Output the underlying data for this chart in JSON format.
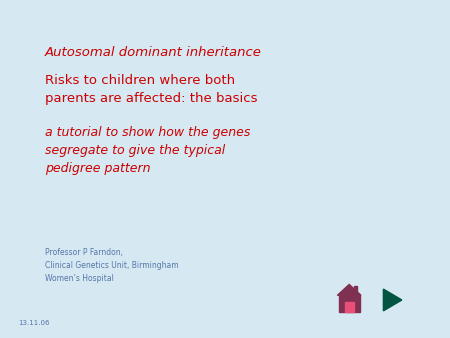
{
  "background_color": "#d6e8f2",
  "title_line": "Autosomal dominant inheritance",
  "title_color": "#cc0000",
  "title_fontsize": 9.5,
  "subtitle_line1": "Risks to children where both",
  "subtitle_line2": "parents are affected: the basics",
  "subtitle_color": "#cc0000",
  "subtitle_fontsize": 9.5,
  "body_line1": "a tutorial to show how the genes",
  "body_line2": "segregate to give the typical",
  "body_line3": "pedigree pattern",
  "body_color": "#cc0000",
  "body_fontsize": 9.0,
  "professor_text": "Professor P Farndon,\nClinical Genetics Unit, Birmingham\nWomen’s Hospital",
  "professor_color": "#5577aa",
  "professor_fontsize": 5.5,
  "date_text": "13.11.06",
  "date_color": "#5577aa",
  "date_fontsize": 5.0,
  "home_button_color": "#e8507a",
  "play_button_color": "#00bb88",
  "home_icon_color": "#803050",
  "play_icon_color": "#005540"
}
